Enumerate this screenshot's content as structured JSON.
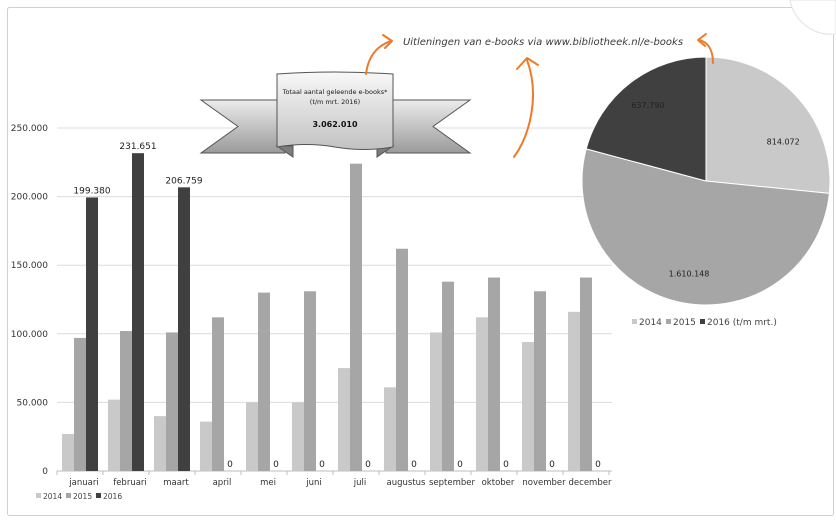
{
  "title": "Uitleningen van e-books via www.bibliotheek.nl/e-books",
  "banner": {
    "line1": "Totaal aantal geleende e-books*",
    "line2": "(t/m mrt. 2016)",
    "total": "3.062.010"
  },
  "colors": {
    "accent": "#f07a28"
  },
  "chart_data": [
    {
      "type": "bar",
      "categories": [
        "januari",
        "februari",
        "maart",
        "april",
        "mei",
        "juni",
        "juli",
        "augustus",
        "september",
        "oktober",
        "november",
        "december"
      ],
      "series": [
        {
          "name": "2014",
          "color": "#c9c9c9",
          "values": [
            27000,
            52000,
            40000,
            36000,
            50000,
            50000,
            75000,
            61000,
            101000,
            112000,
            94000,
            116000
          ]
        },
        {
          "name": "2015",
          "color": "#a6a6a6",
          "values": [
            97000,
            102000,
            101000,
            112000,
            130000,
            131000,
            224000,
            162000,
            138000,
            141000,
            131000,
            141000
          ]
        },
        {
          "name": "2016",
          "color": "#404040",
          "values": [
            199380,
            231651,
            206759,
            0,
            0,
            0,
            0,
            0,
            0,
            0,
            0,
            0
          ],
          "data_labels": [
            "199.380",
            "231.651",
            "206.759",
            "0",
            "0",
            "0",
            "0",
            "0",
            "0",
            "0",
            "0",
            "0"
          ]
        }
      ],
      "ylim": [
        0,
        250000
      ],
      "yticks": {
        "values": [
          0,
          50000,
          100000,
          150000,
          200000,
          250000
        ],
        "labels": [
          "0",
          "50.000",
          "100.000",
          "150.000",
          "200.000",
          "250.000"
        ]
      },
      "grid": true,
      "legend": "bottom-left"
    },
    {
      "type": "pie",
      "labels": [
        "2014",
        "2015",
        "2016 (t/m mrt.)"
      ],
      "values": [
        814072,
        1610148,
        637790
      ],
      "data_labels": [
        "814.072",
        "1.610.148",
        "637.790"
      ],
      "colors": [
        "#c9c9c9",
        "#a6a6a6",
        "#404040"
      ],
      "legend": "bottom"
    }
  ]
}
